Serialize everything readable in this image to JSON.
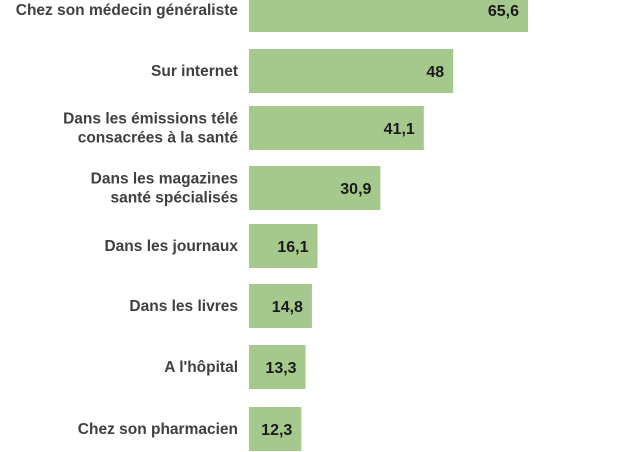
{
  "chart_data": {
    "type": "bar",
    "orientation": "horizontal",
    "title": "",
    "xlabel": "",
    "ylabel": "",
    "categories": [
      "Chez son médecin généraliste",
      "Sur internet",
      "Dans les émissions télé consacrées à la santé",
      "Dans les magazines santé spécialisés",
      "Dans les journaux",
      "Dans les livres",
      "A l'hôpital",
      "Chez son pharmacien"
    ],
    "category_lines": [
      [
        "Chez son médecin généraliste"
      ],
      [
        "Sur internet"
      ],
      [
        "Dans les émissions télé",
        "consacrées à la santé"
      ],
      [
        "Dans les magazines",
        "santé spécialisés"
      ],
      [
        "Dans les journaux"
      ],
      [
        "Dans les livres"
      ],
      [
        "A l'hôpital"
      ],
      [
        "Chez son pharmacien"
      ]
    ],
    "values": [
      65.6,
      48,
      41.1,
      30.9,
      16.1,
      14.8,
      13.3,
      12.3
    ],
    "value_labels": [
      "65,6",
      "48",
      "41,1",
      "30,9",
      "16,1",
      "14,8",
      "13,3",
      "12,3"
    ],
    "xlim": [
      0,
      65.6
    ],
    "grid": false,
    "legend": "none",
    "bar_color": "#a5c98c",
    "label_color": "#3f3f3f",
    "value_color": "#1a1a1a"
  }
}
